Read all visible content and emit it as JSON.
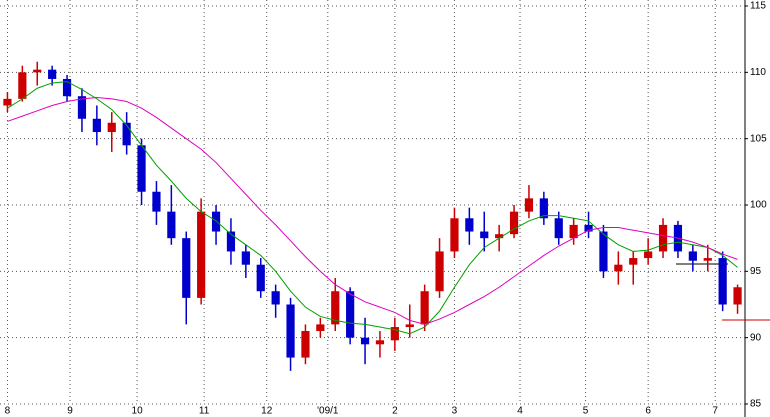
{
  "chart_data": {
    "type": "candlestick",
    "x": [
      0,
      1,
      2,
      3,
      4,
      5,
      6,
      7,
      8,
      9,
      10,
      11,
      12,
      13,
      14,
      15,
      16,
      17,
      18,
      19,
      20,
      21,
      22,
      23,
      24,
      25,
      26,
      27,
      28,
      29,
      30,
      31,
      32,
      33,
      34,
      35,
      36,
      37,
      38,
      39,
      40,
      41,
      42,
      43,
      44,
      45,
      46,
      47,
      48,
      49
    ],
    "open": [
      107.5,
      108,
      110,
      110.2,
      109.5,
      108.2,
      106.5,
      105.5,
      106.2,
      104.5,
      101,
      99.5,
      97.5,
      93,
      99.5,
      98,
      96.5,
      95.5,
      93.5,
      92.5,
      88.5,
      90.5,
      91,
      93.5,
      90,
      89.5,
      89.8,
      90.8,
      91,
      93.5,
      96.5,
      99,
      98,
      97.5,
      97.8,
      99.5,
      100.5,
      99,
      97.5,
      98.5,
      98,
      95,
      95.5,
      96,
      96.5,
      98.5,
      96.5,
      95.8,
      96,
      92.5
    ],
    "high": [
      108.5,
      110.5,
      110.8,
      110.5,
      109.8,
      108.8,
      107.5,
      107,
      107,
      105,
      101.8,
      101.5,
      98,
      100.5,
      100,
      99,
      97,
      96,
      94,
      93,
      91,
      91.5,
      94.5,
      93.8,
      91.5,
      90.5,
      91.5,
      92.5,
      94,
      97.5,
      99.8,
      99.8,
      99.5,
      98.5,
      100,
      101.5,
      101,
      99.5,
      99,
      99.5,
      98.5,
      96.5,
      96.5,
      97.5,
      99,
      98.8,
      97,
      97,
      96.5,
      94
    ],
    "low": [
      107,
      107.8,
      109,
      109,
      107.8,
      105.5,
      104.5,
      104,
      103.8,
      100,
      98.5,
      97,
      91,
      92.5,
      97,
      95.5,
      94.5,
      93,
      91.5,
      87.5,
      88,
      90,
      90.5,
      89.5,
      88,
      88.5,
      89,
      90,
      90.5,
      93,
      96,
      97,
      96.5,
      96.5,
      97.5,
      99,
      98.5,
      97,
      97,
      97.5,
      94.5,
      94,
      94,
      95.5,
      96,
      96,
      95,
      95,
      92,
      91.8
    ],
    "close": [
      108,
      110,
      110.2,
      109.5,
      108.2,
      106.5,
      105.5,
      106.2,
      104.5,
      101,
      99.5,
      97.5,
      93,
      99.5,
      98,
      96.5,
      95.5,
      93.5,
      92.5,
      88.5,
      90.5,
      91,
      93.5,
      90,
      89.5,
      89.8,
      90.8,
      91,
      93.5,
      96.5,
      99,
      98,
      97.5,
      97.8,
      99.5,
      100.5,
      99,
      97.5,
      98.5,
      98,
      95,
      95.5,
      96,
      96.5,
      98.5,
      96.5,
      95.8,
      96,
      92.5,
      93.8
    ],
    "up_color": "#cc0000",
    "down_color": "#0000cc",
    "lines": [
      {
        "color": "#00a000",
        "values": [
          107.3,
          108,
          108.8,
          109.2,
          109.3,
          108.7,
          108,
          107.2,
          106,
          104.5,
          103,
          101.8,
          100.5,
          99.5,
          98.8,
          97.8,
          97,
          96.2,
          95,
          93.5,
          92.3,
          91.6,
          91.3,
          91.1,
          91,
          90.8,
          90.6,
          90.3,
          90.8,
          92,
          93.8,
          95.5,
          96.8,
          97.5,
          98.2,
          98.8,
          99.2,
          99.2,
          99,
          98.8,
          97.8,
          97,
          96.5,
          96.6,
          97,
          97.2,
          97,
          96.8,
          96.2,
          95.3
        ]
      },
      {
        "color": "#e000c0",
        "values": [
          106.3,
          106.7,
          107.1,
          107.5,
          107.8,
          108,
          108.1,
          108,
          107.8,
          107.3,
          106.6,
          105.8,
          105,
          104.2,
          103.2,
          102,
          100.8,
          99.6,
          98.5,
          97.3,
          96.1,
          95,
          94,
          93.3,
          92.7,
          92.3,
          91.9,
          91.3,
          91,
          91.4,
          91.9,
          92.5,
          93.1,
          93.8,
          94.6,
          95.4,
          96.2,
          96.9,
          97.5,
          98.1,
          98.3,
          98.3,
          98.1,
          97.9,
          97.7,
          97.5,
          97.2,
          96.8,
          96.3,
          95.9
        ]
      }
    ],
    "xlim": [
      -0.5,
      49.5
    ],
    "xticks": [
      {
        "value": 0,
        "label": "8"
      },
      {
        "value": 4.2,
        "label": "9"
      },
      {
        "value": 8.7,
        "label": "10"
      },
      {
        "value": 13.2,
        "label": "11"
      },
      {
        "value": 17.4,
        "label": "12"
      },
      {
        "value": 21.5,
        "label": "'09/1"
      },
      {
        "value": 26,
        "label": "2"
      },
      {
        "value": 30,
        "label": "3"
      },
      {
        "value": 34.4,
        "label": "4"
      },
      {
        "value": 38.8,
        "label": "5"
      },
      {
        "value": 43,
        "label": "6"
      },
      {
        "value": 47.5,
        "label": "7"
      }
    ],
    "ylim": [
      85,
      115
    ],
    "yticks": [
      85,
      90,
      95,
      100,
      105,
      110,
      115
    ],
    "grid": true,
    "y_axis_side": "right"
  }
}
